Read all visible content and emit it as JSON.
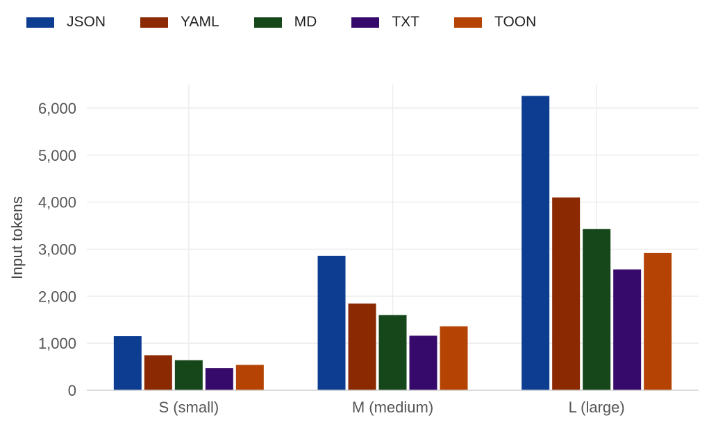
{
  "chart_data": {
    "type": "bar",
    "categories": [
      "S (small)",
      "M (medium)",
      "L (large)"
    ],
    "series": [
      {
        "name": "JSON",
        "color": "#0d3d91",
        "values": [
          1150,
          2860,
          6260
        ]
      },
      {
        "name": "YAML",
        "color": "#8b2a02",
        "values": [
          745,
          1845,
          4100
        ]
      },
      {
        "name": "MD",
        "color": "#15471b",
        "values": [
          640,
          1600,
          3430
        ]
      },
      {
        "name": "TXT",
        "color": "#360a6a",
        "values": [
          470,
          1160,
          2570
        ]
      },
      {
        "name": "TOON",
        "color": "#b54304",
        "values": [
          540,
          1360,
          2920
        ]
      }
    ],
    "title": "",
    "xlabel": "",
    "ylabel": "Input tokens",
    "ylim": [
      0,
      6500
    ],
    "yticks": [
      0,
      1000,
      2000,
      3000,
      4000,
      5000,
      6000
    ],
    "ytick_labels": [
      "0",
      "1,000",
      "2,000",
      "3,000",
      "4,000",
      "5,000",
      "6,000"
    ],
    "grid": true,
    "legend_position": "top-left"
  }
}
